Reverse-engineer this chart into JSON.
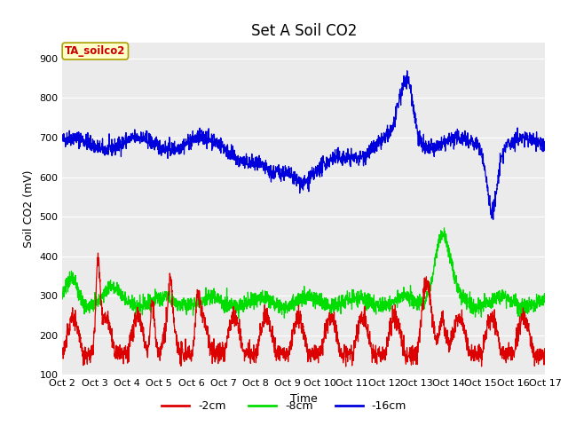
{
  "title": "Set A Soil CO2",
  "xlabel": "Time",
  "ylabel": "Soil CO2 (mV)",
  "ylim": [
    100,
    940
  ],
  "yticks": [
    100,
    200,
    300,
    400,
    500,
    600,
    700,
    800,
    900
  ],
  "annotation_text": "TA_soilco2",
  "annotation_color": "#cc0000",
  "annotation_bg": "#ffffcc",
  "annotation_border": "#aaa000",
  "line_colors": {
    "2cm": "#dd0000",
    "8cm": "#00dd00",
    "16cm": "#0000dd"
  },
  "legend_labels": [
    "-2cm",
    "-8cm",
    "-16cm"
  ],
  "xtick_labels": [
    "Oct 2",
    "Oct 3",
    "Oct 4",
    "Oct 5",
    "Oct 6",
    "Oct 7",
    "Oct 8",
    "Oct 9",
    "Oct 10",
    "Oct 11",
    "Oct 12",
    "Oct 13",
    "Oct 14",
    "Oct 15",
    "Oct 16",
    "Oct 17"
  ],
  "bg_color": "#e8e8e8",
  "plot_bg": "#ebebeb",
  "title_fontsize": 12,
  "axis_fontsize": 9,
  "tick_fontsize": 8
}
